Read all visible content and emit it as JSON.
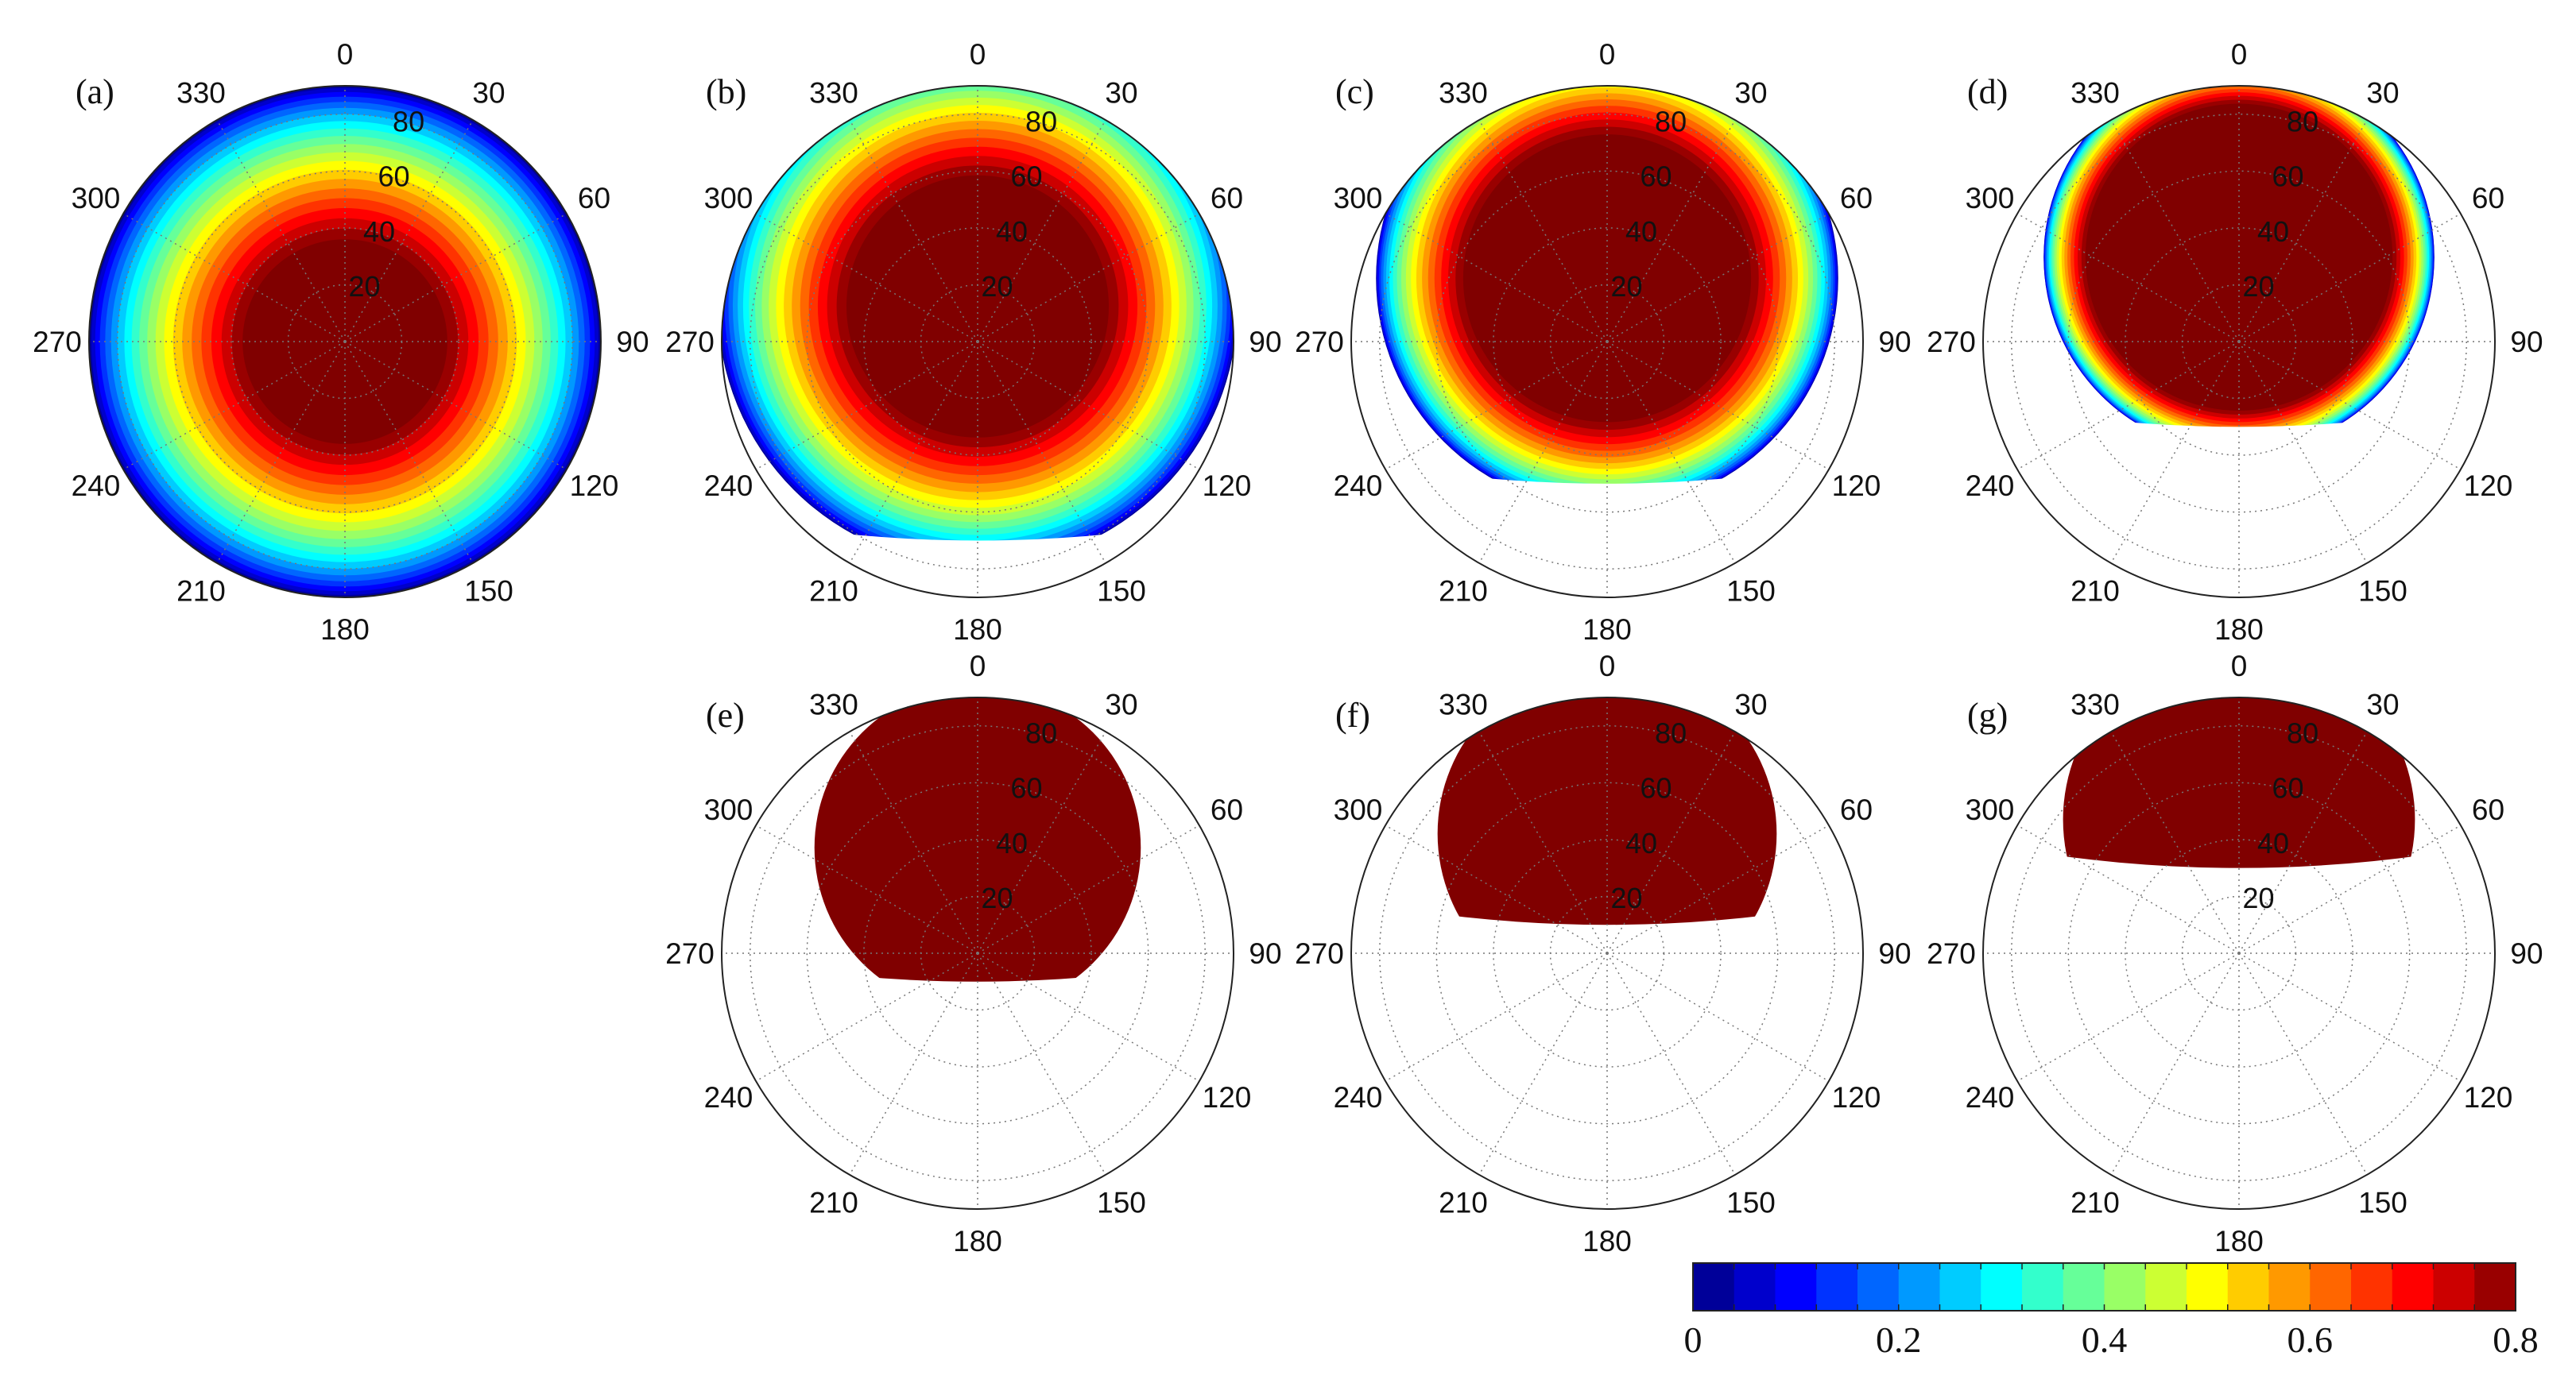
{
  "chart_data": {
    "type": "polar_contour",
    "description_units": "polar angle in degrees, radial ticks 20-80",
    "angle_ticks": [
      "0",
      "30",
      "60",
      "90",
      "120",
      "150",
      "180",
      "210",
      "240",
      "270",
      "300",
      "330"
    ],
    "radial_ticks": [
      "20",
      "40",
      "60",
      "80"
    ],
    "r_max": 90,
    "colormap": "jet",
    "panels": [
      {
        "label": "(a)",
        "center_value": 0.8,
        "max_radius": 70,
        "visible_to": 90,
        "tilt": 0
      },
      {
        "label": "(b)",
        "center_value": 0.8,
        "max_radius": 70,
        "visible_to": 80,
        "tilt": 0.25
      },
      {
        "label": "(c)",
        "center_value": 0.8,
        "max_radius": 70,
        "visible_to": 70,
        "tilt": 0.45
      },
      {
        "label": "(d)",
        "center_value": 0.8,
        "max_radius": 70,
        "visible_to": 60,
        "tilt": 0.6
      },
      {
        "label": "(e)",
        "center_value": 0.8,
        "max_radius": 70,
        "visible_to": 50,
        "tilt": 0.75
      },
      {
        "label": "(f)",
        "center_value": 0.8,
        "max_radius": 70,
        "visible_to": 40,
        "tilt": 0.85
      },
      {
        "label": "(g)",
        "center_value": 0.8,
        "max_radius": 70,
        "visible_to": 30,
        "tilt": 0.95
      }
    ],
    "colorbar": {
      "min": 0,
      "max": 0.8,
      "tick_labels": [
        "0",
        "0.2",
        "0.4",
        "0.6",
        "0.8"
      ],
      "levels": 20
    }
  }
}
